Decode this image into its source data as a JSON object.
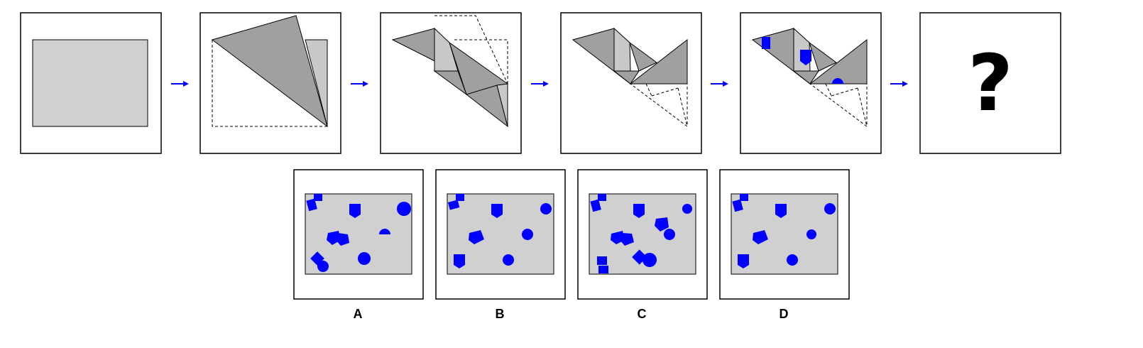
{
  "colors": {
    "paper": "#d0d0d0",
    "fold_dark": "#a0a0a0",
    "fold_light": "#c8c8c8",
    "hole": "#0000ff",
    "arrow": "#0000ff",
    "outline": "#000000"
  },
  "sequence": {
    "steps": [
      "paper-rectangle",
      "fold-1",
      "fold-2",
      "fold-3",
      "punch-holes",
      "unknown"
    ],
    "unknown_symbol": "?"
  },
  "options": [
    {
      "label": "A"
    },
    {
      "label": "B"
    },
    {
      "label": "C"
    },
    {
      "label": "D"
    }
  ],
  "icons": {
    "arrow": "right-arrow-icon",
    "hole_shapes": [
      "square",
      "shield",
      "circle",
      "pentagon",
      "diamond"
    ]
  }
}
